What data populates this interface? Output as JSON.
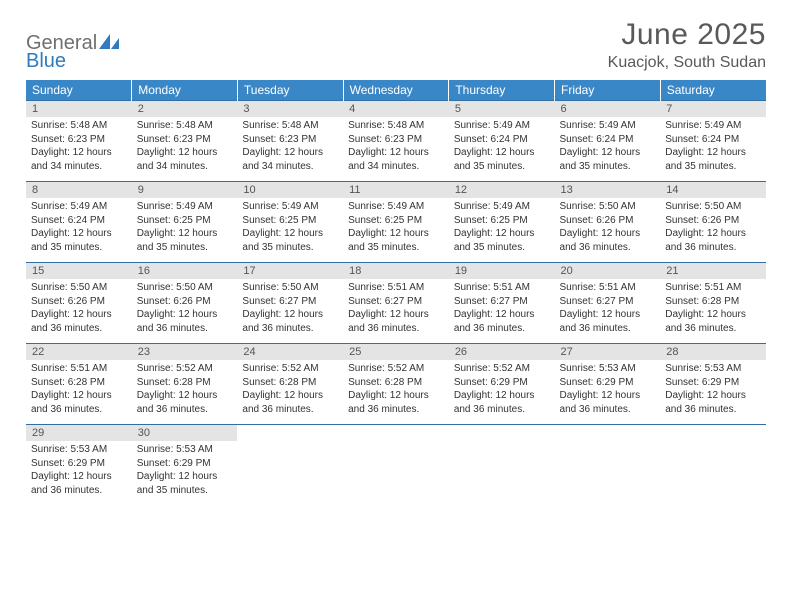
{
  "logo": {
    "text1": "General",
    "text2": "Blue",
    "color1": "#6f6f6f",
    "color2": "#2f7bbf"
  },
  "title": "June 2025",
  "location": "Kuacjok, South Sudan",
  "header_bg": "#3a87c8",
  "header_text_color": "#ffffff",
  "daynum_bg": "#e4e4e4",
  "border_color": "#2f6fa6",
  "weekdays": [
    "Sunday",
    "Monday",
    "Tuesday",
    "Wednesday",
    "Thursday",
    "Friday",
    "Saturday"
  ],
  "weeks": [
    [
      {
        "n": "1",
        "sunrise": "5:48 AM",
        "sunset": "6:23 PM",
        "daylight": "12 hours and 34 minutes."
      },
      {
        "n": "2",
        "sunrise": "5:48 AM",
        "sunset": "6:23 PM",
        "daylight": "12 hours and 34 minutes."
      },
      {
        "n": "3",
        "sunrise": "5:48 AM",
        "sunset": "6:23 PM",
        "daylight": "12 hours and 34 minutes."
      },
      {
        "n": "4",
        "sunrise": "5:48 AM",
        "sunset": "6:23 PM",
        "daylight": "12 hours and 34 minutes."
      },
      {
        "n": "5",
        "sunrise": "5:49 AM",
        "sunset": "6:24 PM",
        "daylight": "12 hours and 35 minutes."
      },
      {
        "n": "6",
        "sunrise": "5:49 AM",
        "sunset": "6:24 PM",
        "daylight": "12 hours and 35 minutes."
      },
      {
        "n": "7",
        "sunrise": "5:49 AM",
        "sunset": "6:24 PM",
        "daylight": "12 hours and 35 minutes."
      }
    ],
    [
      {
        "n": "8",
        "sunrise": "5:49 AM",
        "sunset": "6:24 PM",
        "daylight": "12 hours and 35 minutes."
      },
      {
        "n": "9",
        "sunrise": "5:49 AM",
        "sunset": "6:25 PM",
        "daylight": "12 hours and 35 minutes."
      },
      {
        "n": "10",
        "sunrise": "5:49 AM",
        "sunset": "6:25 PM",
        "daylight": "12 hours and 35 minutes."
      },
      {
        "n": "11",
        "sunrise": "5:49 AM",
        "sunset": "6:25 PM",
        "daylight": "12 hours and 35 minutes."
      },
      {
        "n": "12",
        "sunrise": "5:49 AM",
        "sunset": "6:25 PM",
        "daylight": "12 hours and 35 minutes."
      },
      {
        "n": "13",
        "sunrise": "5:50 AM",
        "sunset": "6:26 PM",
        "daylight": "12 hours and 36 minutes."
      },
      {
        "n": "14",
        "sunrise": "5:50 AM",
        "sunset": "6:26 PM",
        "daylight": "12 hours and 36 minutes."
      }
    ],
    [
      {
        "n": "15",
        "sunrise": "5:50 AM",
        "sunset": "6:26 PM",
        "daylight": "12 hours and 36 minutes."
      },
      {
        "n": "16",
        "sunrise": "5:50 AM",
        "sunset": "6:26 PM",
        "daylight": "12 hours and 36 minutes."
      },
      {
        "n": "17",
        "sunrise": "5:50 AM",
        "sunset": "6:27 PM",
        "daylight": "12 hours and 36 minutes."
      },
      {
        "n": "18",
        "sunrise": "5:51 AM",
        "sunset": "6:27 PM",
        "daylight": "12 hours and 36 minutes."
      },
      {
        "n": "19",
        "sunrise": "5:51 AM",
        "sunset": "6:27 PM",
        "daylight": "12 hours and 36 minutes."
      },
      {
        "n": "20",
        "sunrise": "5:51 AM",
        "sunset": "6:27 PM",
        "daylight": "12 hours and 36 minutes."
      },
      {
        "n": "21",
        "sunrise": "5:51 AM",
        "sunset": "6:28 PM",
        "daylight": "12 hours and 36 minutes."
      }
    ],
    [
      {
        "n": "22",
        "sunrise": "5:51 AM",
        "sunset": "6:28 PM",
        "daylight": "12 hours and 36 minutes."
      },
      {
        "n": "23",
        "sunrise": "5:52 AM",
        "sunset": "6:28 PM",
        "daylight": "12 hours and 36 minutes."
      },
      {
        "n": "24",
        "sunrise": "5:52 AM",
        "sunset": "6:28 PM",
        "daylight": "12 hours and 36 minutes."
      },
      {
        "n": "25",
        "sunrise": "5:52 AM",
        "sunset": "6:28 PM",
        "daylight": "12 hours and 36 minutes."
      },
      {
        "n": "26",
        "sunrise": "5:52 AM",
        "sunset": "6:29 PM",
        "daylight": "12 hours and 36 minutes."
      },
      {
        "n": "27",
        "sunrise": "5:53 AM",
        "sunset": "6:29 PM",
        "daylight": "12 hours and 36 minutes."
      },
      {
        "n": "28",
        "sunrise": "5:53 AM",
        "sunset": "6:29 PM",
        "daylight": "12 hours and 36 minutes."
      }
    ],
    [
      {
        "n": "29",
        "sunrise": "5:53 AM",
        "sunset": "6:29 PM",
        "daylight": "12 hours and 36 minutes."
      },
      {
        "n": "30",
        "sunrise": "5:53 AM",
        "sunset": "6:29 PM",
        "daylight": "12 hours and 35 minutes."
      },
      null,
      null,
      null,
      null,
      null
    ]
  ],
  "labels": {
    "sunrise": "Sunrise:",
    "sunset": "Sunset:",
    "daylight": "Daylight:"
  }
}
